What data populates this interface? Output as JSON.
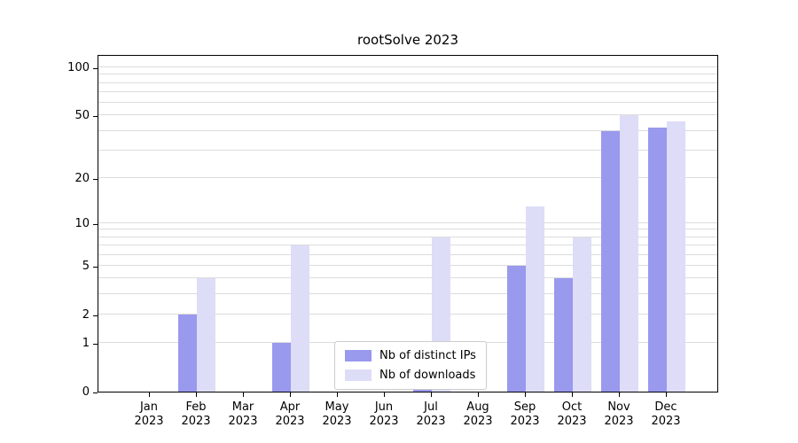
{
  "chart_data": {
    "type": "bar",
    "title": "rootSolve 2023",
    "xlabel": "",
    "ylabel": "",
    "year_label": "2023",
    "categories": [
      "Jan",
      "Feb",
      "Mar",
      "Apr",
      "May",
      "Jun",
      "Jul",
      "Aug",
      "Sep",
      "Oct",
      "Nov",
      "Dec"
    ],
    "series": [
      {
        "name": "Nb of distinct IPs",
        "color": "#9999ee",
        "values": [
          0,
          2,
          0,
          1,
          0,
          0,
          1,
          0,
          5,
          4,
          40,
          42
        ]
      },
      {
        "name": "Nb of downloads",
        "color": "#ddddf7",
        "values": [
          0,
          4,
          0,
          7,
          0,
          0,
          8,
          0,
          13,
          8,
          50,
          46
        ]
      }
    ],
    "yscale": "log1p",
    "yticks": [
      0,
      1,
      2,
      5,
      10,
      20,
      50,
      100
    ],
    "ylim": [
      0,
      121
    ],
    "grid_values": [
      1,
      2,
      3,
      4,
      5,
      6,
      7,
      8,
      9,
      10,
      20,
      30,
      40,
      50,
      60,
      70,
      80,
      90,
      100
    ],
    "grid": "on",
    "legend_position": "lower center"
  },
  "colors": {
    "background": "#ffffff",
    "spine": "#000000",
    "grid": "#dcdcdc",
    "series_ips": "#9999ee",
    "series_downloads": "#ddddf7",
    "text": "#000000"
  }
}
